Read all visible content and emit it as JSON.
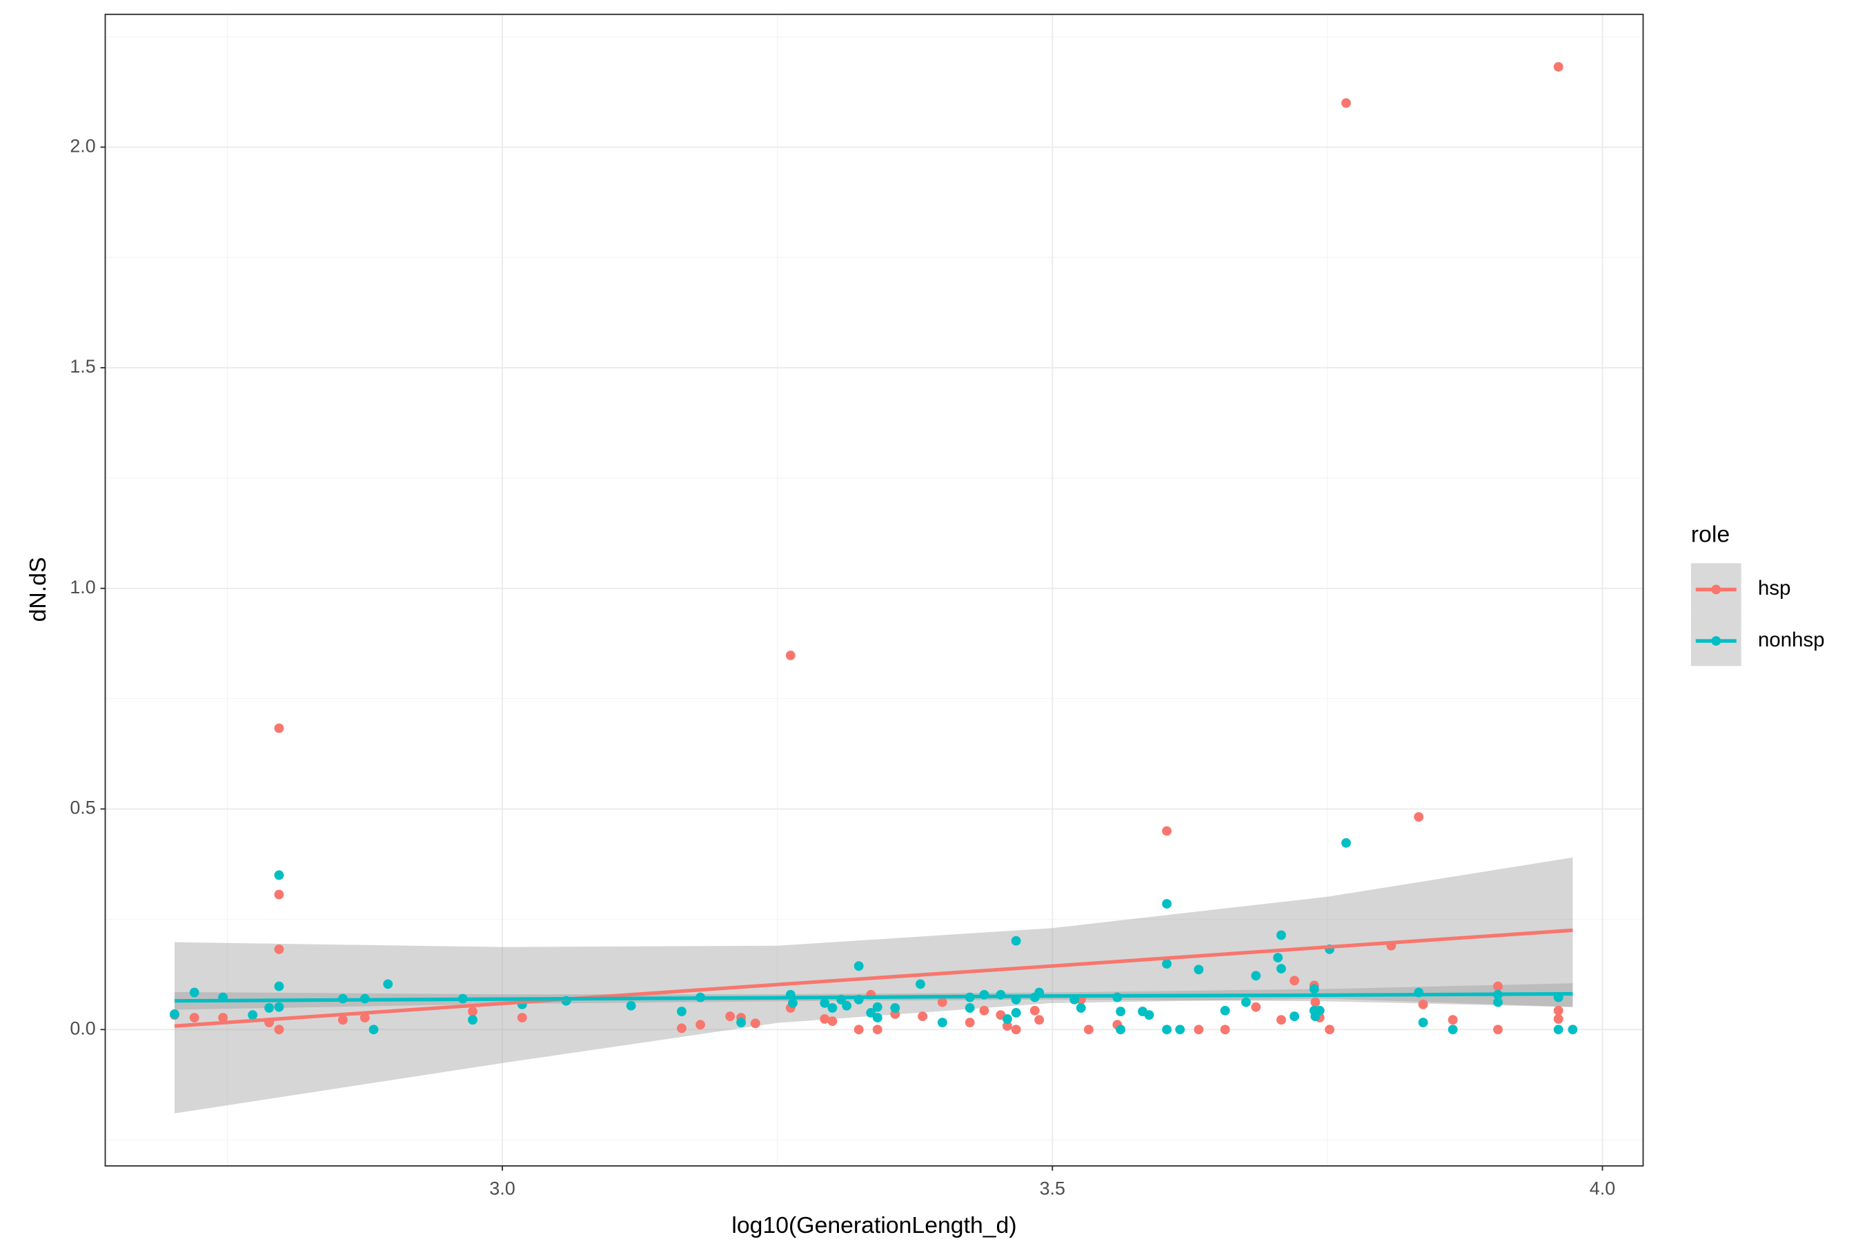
{
  "chart_data": {
    "type": "scatter",
    "x_label": "log10(GenerationLength_d)",
    "y_label": "dN.dS",
    "legend_title": "role",
    "legend": "right",
    "grid": true,
    "band_color": "#999999",
    "xlim": [
      2.639,
      4.037
    ],
    "ylim": [
      -0.309,
      2.301
    ],
    "xticks": [
      {
        "value": 3,
        "label": "3.0"
      },
      {
        "value": 3.5,
        "label": "3.5"
      },
      {
        "value": 4,
        "label": "4.0"
      }
    ],
    "yticks": [
      {
        "value": 0,
        "label": "0.0"
      },
      {
        "value": 0.5,
        "label": "0.5"
      },
      {
        "value": 1,
        "label": "1.0"
      },
      {
        "value": 1.5,
        "label": "1.5"
      },
      {
        "value": 2,
        "label": "2.0"
      }
    ],
    "x_minor_ticks": [
      2.75,
      3.25,
      3.75
    ],
    "y_minor_ticks": [
      -0.25,
      0.25,
      0.75,
      1.25,
      1.75,
      2.25
    ],
    "series": [
      {
        "name": "hsp",
        "color": "#f8766d",
        "x": [
          2.702,
          2.72,
          2.746,
          2.788,
          2.797,
          2.797,
          2.797,
          2.797,
          2.855,
          2.875,
          2.973,
          3.018,
          3.163,
          3.18,
          3.207,
          3.217,
          3.23,
          3.262,
          3.262,
          3.293,
          3.3,
          3.324,
          3.335,
          3.341,
          3.357,
          3.382,
          3.4,
          3.425,
          3.438,
          3.453,
          3.459,
          3.467,
          3.484,
          3.488,
          3.526,
          3.533,
          3.559,
          3.604,
          3.633,
          3.657,
          3.685,
          3.708,
          3.72,
          3.738,
          3.739,
          3.743,
          3.752,
          3.767,
          3.808,
          3.833,
          3.837,
          3.864,
          3.905,
          3.905,
          3.96,
          3.96,
          3.96
        ],
        "values": [
          0.033,
          0.027,
          0.027,
          0.016,
          0.683,
          0.306,
          0.182,
          0,
          0.022,
          0.027,
          0.041,
          0.027,
          0.003,
          0.011,
          0.03,
          0.027,
          0.014,
          0.848,
          0.049,
          0.024,
          0.019,
          0,
          0.079,
          0,
          0.035,
          0.03,
          0.062,
          0.016,
          0.043,
          0.033,
          0.008,
          0,
          0.043,
          0.022,
          0.068,
          0,
          0.011,
          0.45,
          0,
          0,
          0.051,
          0.022,
          0.111,
          0.1,
          0.062,
          0.027,
          0,
          2.1,
          0.19,
          0.482,
          0.057,
          0.022,
          0.098,
          0,
          2.182,
          0.043,
          0.024
        ],
        "fit": {
          "x": [
            2.702,
            3.0,
            3.25,
            3.5,
            3.75,
            3.973
          ],
          "y": [
            0.008,
            0.059,
            0.102,
            0.144,
            0.187,
            0.225
          ],
          "lower": [
            -0.19,
            -0.076,
            0.015,
            0.06,
            0.07,
            0.051
          ],
          "upper": [
            0.198,
            0.187,
            0.19,
            0.23,
            0.301,
            0.39
          ]
        }
      },
      {
        "name": "nonhsp",
        "color": "#00bfc4",
        "x": [
          2.702,
          2.72,
          2.746,
          2.773,
          2.788,
          2.797,
          2.797,
          2.797,
          2.855,
          2.875,
          2.883,
          2.896,
          2.964,
          2.973,
          3.018,
          3.058,
          3.117,
          3.163,
          3.18,
          3.217,
          3.262,
          3.264,
          3.293,
          3.3,
          3.308,
          3.313,
          3.324,
          3.324,
          3.335,
          3.341,
          3.341,
          3.357,
          3.38,
          3.4,
          3.425,
          3.425,
          3.438,
          3.453,
          3.459,
          3.467,
          3.467,
          3.467,
          3.484,
          3.488,
          3.52,
          3.526,
          3.559,
          3.562,
          3.562,
          3.582,
          3.588,
          3.604,
          3.604,
          3.604,
          3.616,
          3.633,
          3.657,
          3.676,
          3.685,
          3.705,
          3.708,
          3.708,
          3.72,
          3.738,
          3.738,
          3.739,
          3.743,
          3.752,
          3.767,
          3.833,
          3.837,
          3.864,
          3.905,
          3.905,
          3.96,
          3.96,
          3.973
        ],
        "values": [
          0.035,
          0.084,
          0.073,
          0.033,
          0.049,
          0.35,
          0.098,
          0.051,
          0.07,
          0.07,
          0,
          0.103,
          0.07,
          0.022,
          0.057,
          0.065,
          0.054,
          0.041,
          0.073,
          0.016,
          0.079,
          0.06,
          0.06,
          0.049,
          0.068,
          0.054,
          0.144,
          0.068,
          0.038,
          0.051,
          0.027,
          0.049,
          0.103,
          0.016,
          0.049,
          0.073,
          0.079,
          0.079,
          0.024,
          0.068,
          0.201,
          0.038,
          0.073,
          0.084,
          0.068,
          0.049,
          0.073,
          0.041,
          0,
          0.041,
          0.033,
          0,
          0.285,
          0.149,
          0,
          0.136,
          0.043,
          0.062,
          0.122,
          0.163,
          0.214,
          0.138,
          0.03,
          0.092,
          0.043,
          0.03,
          0.043,
          0.182,
          0.423,
          0.084,
          0.016,
          0,
          0.079,
          0.062,
          0.073,
          0,
          0
        ],
        "fit": {
          "x": [
            2.702,
            3.0,
            3.25,
            3.5,
            3.75,
            3.973
          ],
          "y": [
            0.065,
            0.069,
            0.072,
            0.076,
            0.078,
            0.081
          ],
          "lower": [
            0.045,
            0.058,
            0.064,
            0.068,
            0.064,
            0.051
          ],
          "upper": [
            0.085,
            0.08,
            0.08,
            0.084,
            0.092,
            0.105
          ]
        }
      }
    ]
  }
}
